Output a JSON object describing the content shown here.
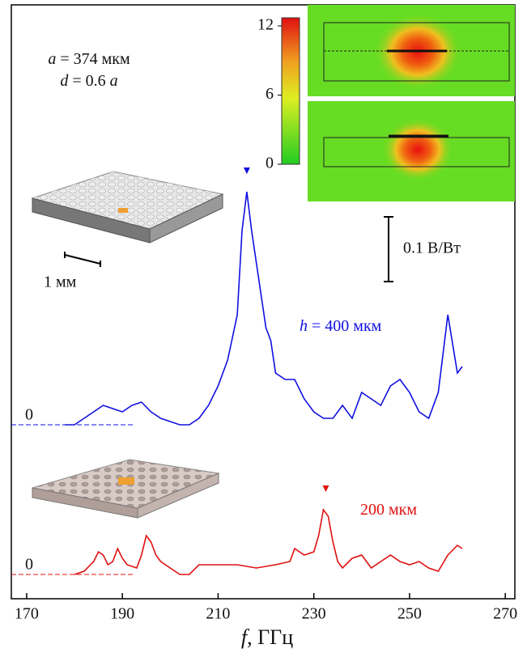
{
  "chart_data": {
    "type": "line",
    "xlabel": {
      "symbol": "f",
      "text": ", ГГц"
    },
    "xlim": [
      166.8,
      272
    ],
    "xticks": [
      170,
      190,
      210,
      230,
      250,
      270
    ],
    "annotations": [
      {
        "symbol": "a",
        "text": " = 374 мкм"
      },
      {
        "symbol": "d",
        "text": " = 0.6 ",
        "symbol2": "a"
      }
    ],
    "scale_bar": {
      "value": 0.1,
      "label": "0.1 В/Вт"
    },
    "length_bar_label": "1 мм",
    "colorbar": {
      "lim": [
        0,
        12.7
      ],
      "ticks": [
        0,
        6,
        12
      ]
    },
    "series": [
      {
        "name": "400 мкм",
        "label_symbol": "h",
        "label_prefix": " = ",
        "color": "#1010e0",
        "baseline_label": "0",
        "peak": 216,
        "x": [
          178,
          180,
          182,
          184,
          186,
          188,
          190,
          192,
          194,
          196,
          198,
          200,
          202,
          204,
          206,
          208,
          210,
          212,
          214,
          215,
          216,
          217,
          218,
          219,
          220,
          221,
          222,
          224,
          226,
          228,
          230,
          232,
          234,
          236,
          238,
          240,
          242,
          244,
          246,
          248,
          250,
          252,
          254,
          256,
          258,
          260,
          261
        ],
        "values": [
          0,
          0,
          0.01,
          0.02,
          0.03,
          0.025,
          0.02,
          0.03,
          0.035,
          0.02,
          0.01,
          0.005,
          0,
          0,
          0.01,
          0.03,
          0.06,
          0.1,
          0.17,
          0.3,
          0.36,
          0.3,
          0.25,
          0.2,
          0.15,
          0.13,
          0.08,
          0.07,
          0.07,
          0.04,
          0.02,
          0.01,
          0.01,
          0.03,
          0.01,
          0.05,
          0.04,
          0.03,
          0.06,
          0.07,
          0.05,
          0.02,
          0.01,
          0.05,
          0.17,
          0.08,
          0.09
        ]
      },
      {
        "name": "200 мкм",
        "color": "#e01010",
        "baseline_label": "0",
        "peak": 232.5,
        "x": [
          180,
          182,
          184,
          185,
          186,
          187,
          188,
          189,
          190,
          191,
          193,
          194,
          195,
          196,
          197,
          198,
          200,
          202,
          204,
          206,
          210,
          214,
          218,
          222,
          225,
          226,
          228,
          230,
          231,
          232,
          233,
          234,
          235,
          236,
          238,
          240,
          242,
          244,
          246,
          248,
          250,
          252,
          254,
          256,
          258,
          260,
          261
        ],
        "values": [
          0,
          0.005,
          0.02,
          0.035,
          0.03,
          0.015,
          0.02,
          0.04,
          0.025,
          0.015,
          0.01,
          0.03,
          0.06,
          0.05,
          0.03,
          0.02,
          0.01,
          0,
          0,
          0.015,
          0.015,
          0.015,
          0.01,
          0.015,
          0.02,
          0.04,
          0.03,
          0.035,
          0.06,
          0.1,
          0.09,
          0.05,
          0.02,
          0.01,
          0.025,
          0.03,
          0.01,
          0.02,
          0.03,
          0.02,
          0.015,
          0.02,
          0.01,
          0.005,
          0.03,
          0.045,
          0.04
        ]
      }
    ]
  }
}
